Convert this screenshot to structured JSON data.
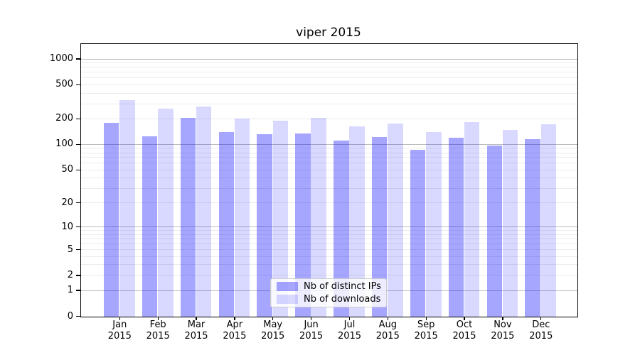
{
  "chart_data": {
    "type": "bar",
    "title": "viper 2015",
    "scale": "log1p",
    "grid": true,
    "ylim": [
      0,
      1480
    ],
    "yticks": [
      0,
      1,
      2,
      5,
      10,
      20,
      50,
      100,
      200,
      500,
      1000
    ],
    "month_labels": [
      "Jan",
      "Feb",
      "Mar",
      "Apr",
      "May",
      "Jun",
      "Jul",
      "Aug",
      "Sep",
      "Oct",
      "Nov",
      "Dec"
    ],
    "year_label": "2015",
    "categories": [
      "Jan 2015",
      "Feb 2015",
      "Mar 2015",
      "Apr 2015",
      "May 2015",
      "Jun 2015",
      "Jul 2015",
      "Aug 2015",
      "Sep 2015",
      "Oct 2015",
      "Nov 2015",
      "Dec 2015"
    ],
    "series": [
      {
        "name": "Nb of distinct IPs",
        "color": "#0000ff",
        "alpha": 0.35,
        "values": [
          180,
          125,
          207,
          142,
          134,
          136,
          112,
          124,
          87,
          121,
          98,
          117
        ]
      },
      {
        "name": "Nb of downloads",
        "color": "#0000ff",
        "alpha": 0.15,
        "values": [
          333,
          265,
          280,
          204,
          193,
          207,
          166,
          178,
          140,
          184,
          149,
          173
        ]
      }
    ],
    "legend_position": "lower center"
  }
}
